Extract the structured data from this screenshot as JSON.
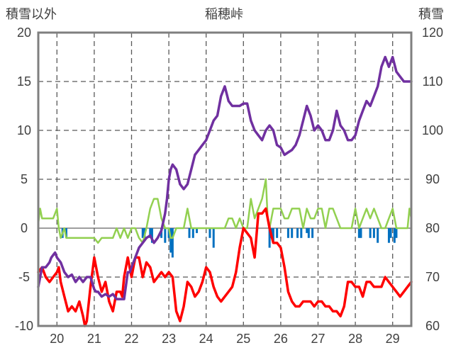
{
  "chart_data": {
    "type": "line",
    "title": "稲穂峠",
    "ylabel_left": "積雪以外",
    "ylabel_right": "積雪",
    "ylim_left": [
      -10,
      20
    ],
    "yticks_left": [
      "20",
      "15",
      "10",
      "5",
      "0",
      "-5",
      "-10"
    ],
    "ylim_right": [
      60,
      120
    ],
    "yticks_right": [
      "120",
      "110",
      "100",
      "90",
      "80",
      "70",
      "60"
    ],
    "x_range": [
      19.5,
      29.5
    ],
    "x_ticks": [
      "20",
      "21",
      "22",
      "23",
      "24",
      "25",
      "26",
      "27",
      "28",
      "29"
    ],
    "grid": true,
    "series": [
      {
        "color": "#7030a0",
        "axis": "right",
        "x": [
          19.5,
          19.6,
          19.7,
          19.8,
          19.85,
          19.9,
          19.95,
          20.0,
          20.1,
          20.2,
          20.3,
          20.4,
          20.5,
          20.6,
          20.7,
          20.8,
          20.9,
          21.0,
          21.05,
          21.1,
          21.2,
          21.3,
          21.4,
          21.5,
          21.6,
          21.7,
          21.8,
          21.9,
          21.95,
          22.0,
          22.1,
          22.2,
          22.3,
          22.4,
          22.5,
          22.6,
          22.7,
          22.8,
          22.9,
          22.95,
          23.0,
          23.05,
          23.1,
          23.2,
          23.3,
          23.4,
          23.5,
          23.6,
          23.7,
          23.8,
          23.9,
          24.0,
          24.1,
          24.2,
          24.3,
          24.4,
          24.5,
          24.6,
          24.7,
          24.8,
          24.9,
          25.0,
          25.1,
          25.2,
          25.3,
          25.4,
          25.5,
          25.6,
          25.7,
          25.8,
          25.9,
          26.0,
          26.1,
          26.2,
          26.3,
          26.4,
          26.5,
          26.6,
          26.7,
          26.8,
          26.9,
          27.0,
          27.1,
          27.2,
          27.3,
          27.4,
          27.5,
          27.6,
          27.7,
          27.8,
          27.9,
          28.0,
          28.1,
          28.2,
          28.3,
          28.4,
          28.5,
          28.6,
          28.7,
          28.8,
          28.9,
          29.0,
          29.1,
          29.2,
          29.3,
          29.4,
          29.5
        ],
        "values": [
          68,
          72,
          72,
          73,
          74,
          74.5,
          75,
          74,
          73,
          71,
          70,
          70.5,
          69,
          70,
          69,
          70,
          70,
          67.5,
          67,
          67,
          66,
          66.5,
          66,
          66.5,
          65.5,
          65.5,
          65.5,
          71,
          71,
          72,
          74,
          76,
          77,
          78,
          78.5,
          77,
          78,
          79.5,
          83,
          86,
          90,
          92,
          93,
          92,
          89,
          88,
          89,
          92,
          95,
          96,
          97,
          98,
          100,
          102,
          103,
          107,
          109,
          106,
          105,
          105,
          105,
          105.5,
          105.5,
          102,
          100,
          99,
          98,
          100,
          101,
          100,
          97,
          96.5,
          95,
          95.5,
          96,
          97,
          99,
          102,
          105,
          103,
          100,
          101,
          100,
          98,
          98,
          100,
          104,
          101,
          100,
          98,
          98,
          99,
          102,
          104,
          106,
          105,
          107,
          109,
          113,
          115,
          113,
          115,
          112,
          111,
          110,
          110,
          110
        ]
      },
      {
        "color": "#ff0000",
        "axis": "left",
        "x": [
          19.5,
          19.6,
          19.7,
          19.8,
          19.9,
          20.0,
          20.05,
          20.1,
          20.2,
          20.3,
          20.4,
          20.5,
          20.6,
          20.7,
          20.75,
          20.8,
          20.9,
          21.0,
          21.1,
          21.2,
          21.3,
          21.4,
          21.5,
          21.6,
          21.7,
          21.75,
          21.8,
          21.9,
          22.0,
          22.05,
          22.1,
          22.2,
          22.3,
          22.4,
          22.5,
          22.6,
          22.7,
          22.8,
          22.9,
          23.0,
          23.1,
          23.2,
          23.3,
          23.4,
          23.5,
          23.6,
          23.7,
          23.8,
          23.9,
          24.0,
          24.1,
          24.2,
          24.3,
          24.4,
          24.5,
          24.6,
          24.7,
          24.8,
          24.9,
          25.0,
          25.1,
          25.2,
          25.3,
          25.4,
          25.5,
          25.6,
          25.65,
          25.7,
          25.8,
          25.9,
          26.0,
          26.1,
          26.2,
          26.3,
          26.4,
          26.5,
          26.6,
          26.7,
          26.8,
          26.9,
          27.0,
          27.1,
          27.2,
          27.3,
          27.4,
          27.5,
          27.6,
          27.7,
          27.8,
          27.9,
          28.0,
          28.1,
          28.2,
          28.3,
          28.4,
          28.5,
          28.6,
          28.7,
          28.8,
          28.9,
          29.0,
          29.1,
          29.2,
          29.3,
          29.4,
          29.5
        ],
        "values": [
          -4.5,
          -4,
          -5,
          -5.5,
          -5,
          -4.5,
          -4,
          -5.5,
          -7,
          -8.5,
          -8,
          -8.5,
          -7.5,
          -9,
          -10,
          -9.5,
          -6,
          -3,
          -5,
          -6.5,
          -5.5,
          -7.5,
          -8.5,
          -6.5,
          -6.5,
          -7,
          -5,
          -3,
          -5,
          -4,
          -3,
          -3,
          -5,
          -3.5,
          -4,
          -5.5,
          -5,
          -4.5,
          -5,
          -4.5,
          -5,
          -8.5,
          -9.5,
          -8,
          -5.5,
          -6,
          -7,
          -6.5,
          -5.5,
          -4,
          -4.5,
          -6,
          -7,
          -7.5,
          -7,
          -6.5,
          -6,
          -4.5,
          -2,
          0,
          -0.5,
          -1,
          -3,
          1.5,
          1.5,
          2,
          1,
          0,
          -1.5,
          -1.5,
          -2,
          -4,
          -6.5,
          -7.5,
          -8,
          -8,
          -7.5,
          -7.5,
          -7.5,
          -8,
          -7.5,
          -7.5,
          -8,
          -8,
          -8.5,
          -8.5,
          -9,
          -8,
          -5.5,
          -5.5,
          -6,
          -6,
          -7,
          -5.5,
          -5.5,
          -6,
          -6,
          -6,
          -5,
          -5.5,
          -6,
          -6.5,
          -7,
          -6.5,
          -6,
          -5.5
        ]
      },
      {
        "color": "#92d050",
        "axis": "left",
        "x": [
          19.5,
          19.55,
          19.6,
          19.7,
          19.8,
          19.9,
          20.0,
          20.05,
          20.1,
          20.2,
          20.25,
          20.3,
          20.4,
          20.5,
          20.6,
          20.7,
          20.8,
          20.9,
          21.0,
          21.1,
          21.2,
          21.3,
          21.4,
          21.5,
          21.6,
          21.7,
          21.8,
          21.9,
          22.0,
          22.1,
          22.2,
          22.3,
          22.4,
          22.5,
          22.6,
          22.7,
          22.75,
          22.8,
          22.9,
          23.0,
          23.05,
          23.1,
          23.2,
          23.3,
          23.4,
          23.5,
          23.6,
          23.7,
          23.8,
          23.9,
          24.0,
          24.1,
          24.2,
          24.3,
          24.4,
          24.5,
          24.6,
          24.7,
          24.8,
          24.9,
          25.0,
          25.1,
          25.2,
          25.3,
          25.4,
          25.5,
          25.6,
          25.65,
          25.7,
          25.8,
          25.9,
          26.0,
          26.1,
          26.2,
          26.3,
          26.4,
          26.5,
          26.6,
          26.7,
          26.8,
          26.9,
          27.0,
          27.1,
          27.2,
          27.3,
          27.4,
          27.5,
          27.6,
          27.7,
          27.8,
          27.9,
          28.0,
          28.1,
          28.2,
          28.3,
          28.4,
          28.5,
          28.6,
          28.7,
          28.8,
          28.9,
          29.0,
          29.1,
          29.2,
          29.3,
          29.4,
          29.45,
          29.5
        ],
        "values": [
          0.5,
          2,
          1,
          1,
          1,
          1,
          2,
          0,
          -1,
          0,
          -1,
          -1,
          -1,
          -1,
          -1,
          -1,
          -1,
          -1,
          -1,
          -1.5,
          -1,
          -1,
          -1,
          -1,
          0,
          -1,
          0,
          -1,
          0,
          0,
          -1,
          -1.5,
          0,
          2,
          3,
          3,
          2,
          1,
          0,
          0,
          -1,
          -1,
          0,
          0,
          0,
          2,
          0,
          0,
          0,
          0,
          0,
          0,
          0,
          0,
          0,
          0,
          1,
          1,
          0,
          1,
          0,
          0,
          3,
          1,
          2,
          3,
          5,
          1,
          0,
          2,
          2,
          2,
          1,
          1,
          2,
          2,
          2,
          0,
          2,
          1,
          1,
          2,
          2,
          0,
          2,
          2,
          1,
          0,
          0,
          0,
          0,
          2,
          0,
          1,
          2,
          1,
          2,
          1,
          0,
          0,
          1,
          2,
          0,
          0,
          0,
          0,
          2,
          1
        ]
      },
      {
        "type": "bar",
        "color": "#0070c0",
        "axis": "left",
        "x": [
          20.15,
          20.25,
          22.3,
          22.35,
          22.5,
          22.55,
          22.8,
          22.9,
          23.0,
          23.05,
          23.1,
          23.55,
          23.65,
          23.75,
          24.1,
          24.2,
          25.7,
          25.75,
          25.8,
          25.9,
          26.2,
          26.3,
          26.45,
          26.55,
          26.7,
          26.75,
          26.85,
          28.1,
          28.15,
          28.4,
          28.5,
          28.6,
          28.9,
          28.95,
          29.05,
          29.1
        ],
        "values": [
          -1,
          -1,
          -1,
          -1,
          -1,
          -1.5,
          -1,
          -1.5,
          -1,
          -2.5,
          -3,
          -1,
          -1,
          -0.5,
          -1,
          -2,
          -2,
          -1,
          -1.5,
          -1,
          -1,
          -1,
          -1,
          -1,
          -0.5,
          -1,
          -1,
          -1,
          -1,
          -1,
          -1,
          -1.5,
          -1.5,
          -1,
          -1.5,
          -1
        ]
      }
    ]
  }
}
